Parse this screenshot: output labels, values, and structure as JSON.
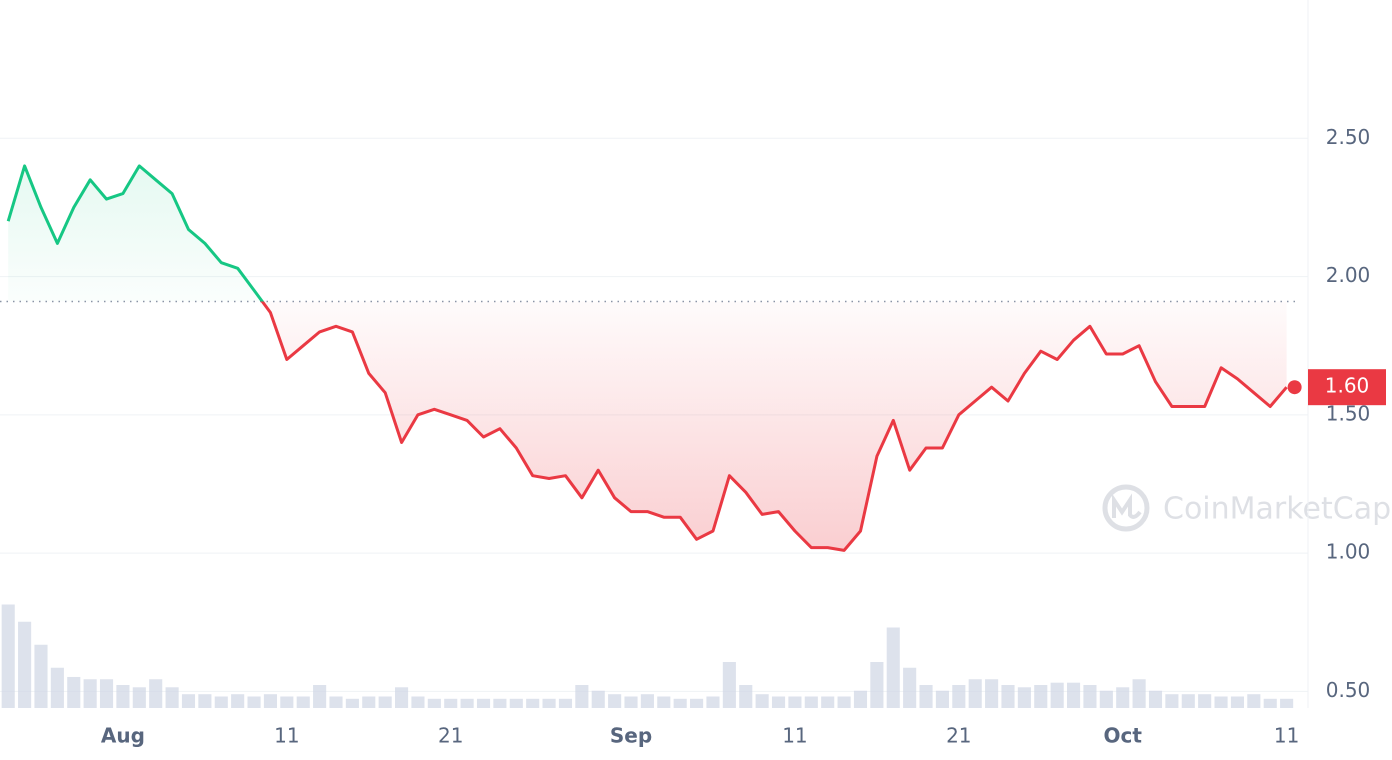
{
  "chart_data": {
    "type": "line",
    "x": [
      "Jul 25",
      "Jul 26",
      "Jul 27",
      "Jul 28",
      "Jul 29",
      "Jul 30",
      "Jul 31",
      "Aug 1",
      "Aug 2",
      "Aug 3",
      "Aug 4",
      "Aug 5",
      "Aug 6",
      "Aug 7",
      "Aug 8",
      "Aug 9",
      "Aug 10",
      "Aug 11",
      "Aug 12",
      "Aug 13",
      "Aug 14",
      "Aug 15",
      "Aug 16",
      "Aug 17",
      "Aug 18",
      "Aug 19",
      "Aug 20",
      "Aug 21",
      "Aug 22",
      "Aug 23",
      "Aug 24",
      "Aug 25",
      "Aug 26",
      "Aug 27",
      "Aug 28",
      "Aug 29",
      "Aug 30",
      "Aug 31",
      "Sep 1",
      "Sep 2",
      "Sep 3",
      "Sep 4",
      "Sep 5",
      "Sep 6",
      "Sep 7",
      "Sep 8",
      "Sep 9",
      "Sep 10",
      "Sep 11",
      "Sep 12",
      "Sep 13",
      "Sep 14",
      "Sep 15",
      "Sep 16",
      "Sep 17",
      "Sep 18",
      "Sep 19",
      "Sep 20",
      "Sep 21",
      "Sep 22",
      "Sep 23",
      "Sep 24",
      "Sep 25",
      "Sep 26",
      "Sep 27",
      "Sep 28",
      "Sep 29",
      "Sep 30",
      "Oct 1",
      "Oct 2",
      "Oct 3",
      "Oct 4",
      "Oct 5",
      "Oct 6",
      "Oct 7",
      "Oct 8",
      "Oct 9",
      "Oct 10",
      "Oct 11"
    ],
    "values": [
      2.2,
      2.4,
      2.25,
      2.12,
      2.25,
      2.35,
      2.28,
      2.3,
      2.4,
      2.35,
      2.3,
      2.17,
      2.12,
      2.05,
      2.03,
      1.95,
      1.87,
      1.7,
      1.75,
      1.8,
      1.82,
      1.8,
      1.65,
      1.58,
      1.4,
      1.5,
      1.52,
      1.5,
      1.48,
      1.42,
      1.45,
      1.38,
      1.28,
      1.27,
      1.28,
      1.2,
      1.3,
      1.2,
      1.15,
      1.15,
      1.13,
      1.13,
      1.05,
      1.08,
      1.28,
      1.22,
      1.14,
      1.15,
      1.08,
      1.02,
      1.02,
      1.01,
      1.08,
      1.35,
      1.48,
      1.3,
      1.38,
      1.38,
      1.5,
      1.55,
      1.6,
      1.55,
      1.65,
      1.73,
      1.7,
      1.77,
      1.82,
      1.72,
      1.72,
      1.75,
      1.62,
      1.53,
      1.53,
      1.53,
      1.67,
      1.63,
      1.58,
      1.53,
      1.6
    ],
    "volume": [
      90,
      75,
      55,
      35,
      27,
      25,
      25,
      20,
      18,
      25,
      18,
      12,
      12,
      10,
      12,
      10,
      12,
      10,
      10,
      20,
      10,
      8,
      10,
      10,
      18,
      10,
      8,
      8,
      8,
      8,
      8,
      8,
      8,
      8,
      8,
      20,
      15,
      12,
      10,
      12,
      10,
      8,
      8,
      10,
      40,
      20,
      12,
      10,
      10,
      10,
      10,
      10,
      15,
      40,
      70,
      35,
      20,
      15,
      20,
      25,
      25,
      20,
      18,
      20,
      22,
      22,
      20,
      15,
      18,
      25,
      15,
      12,
      12,
      12,
      10,
      10,
      12,
      8,
      8
    ],
    "volume_lim": [
      0,
      100
    ],
    "reference_value": 1.91,
    "current_label": "1.60",
    "up_color": "#16c784",
    "down_color": "#ea3943",
    "ylim": [
      0.44,
      3.0
    ],
    "yticks": [
      {
        "value": 0.5,
        "label": "0.50"
      },
      {
        "value": 1.0,
        "label": "1.00"
      },
      {
        "value": 1.5,
        "label": "1.50"
      },
      {
        "value": 2.0,
        "label": "2.00"
      },
      {
        "value": 2.5,
        "label": "2.50"
      }
    ],
    "xticks": [
      {
        "value": "Aug 1",
        "label": "Aug"
      },
      {
        "value": "Aug 11",
        "label": "11"
      },
      {
        "value": "Aug 21",
        "label": "21"
      },
      {
        "value": "Sep 1",
        "label": "Sep"
      },
      {
        "value": "Sep 11",
        "label": "11"
      },
      {
        "value": "Sep 21",
        "label": "21"
      },
      {
        "value": "Oct 1",
        "label": "Oct"
      },
      {
        "value": "Oct 11",
        "label": "11"
      }
    ],
    "grid": true,
    "watermark": "CoinMarketCap"
  }
}
